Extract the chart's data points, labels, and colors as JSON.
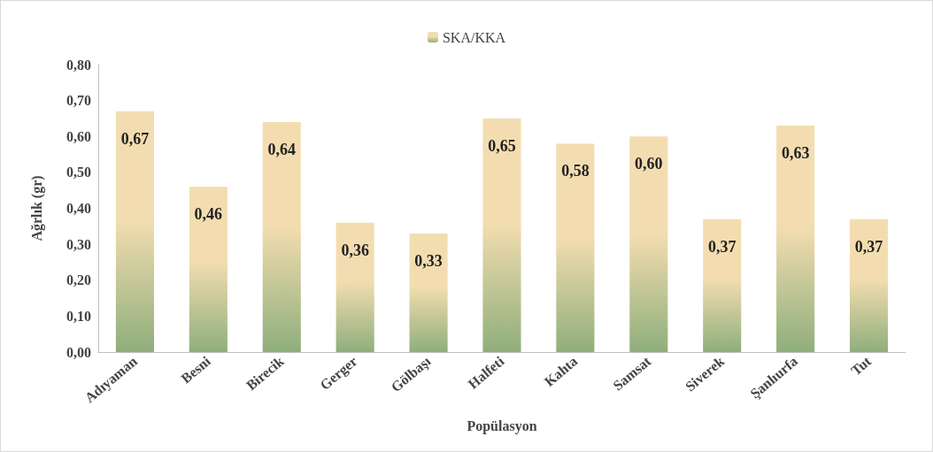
{
  "chart_data": {
    "type": "bar",
    "xlabel": "Popülasyon",
    "ylabel": "Ağrlık (gr)",
    "categories": [
      "Adıyaman",
      "Besni",
      "Birecik",
      "Gerger",
      "Gölbaşı",
      "Halfeti",
      "Kahta",
      "Samsat",
      "Siverek",
      "Şanlıurfa",
      "Tut"
    ],
    "series": [
      {
        "name": "SKA/KKA",
        "color": "#f3ddb0",
        "values": [
          0.67,
          0.46,
          0.64,
          0.36,
          0.33,
          0.65,
          0.58,
          0.6,
          0.37,
          0.63,
          0.37
        ],
        "value_labels": [
          "0,67",
          "0,46",
          "0,64",
          "0,36",
          "0,33",
          "0,65",
          "0,58",
          "0,60",
          "0,37",
          "0,63",
          "0,37"
        ]
      }
    ],
    "ylim": [
      0,
      0.8
    ],
    "yticks": [
      {
        "value": 0,
        "label": "0,00"
      },
      {
        "value": 0.1,
        "label": "0,10"
      },
      {
        "value": 0.2,
        "label": "0,20"
      },
      {
        "value": 0.3,
        "label": "0,30"
      },
      {
        "value": 0.4,
        "label": "0,40"
      },
      {
        "value": 0.5,
        "label": "0,50"
      },
      {
        "value": 0.6,
        "label": "0,60"
      },
      {
        "value": 0.7,
        "label": "0,70"
      },
      {
        "value": 0.8,
        "label": "0,80"
      }
    ],
    "grid": false,
    "legend": "top"
  }
}
